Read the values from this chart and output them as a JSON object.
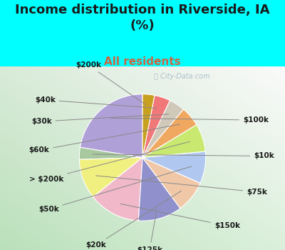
{
  "title": "Income distribution in Riverside, IA\n(%)",
  "subtitle": "All residents",
  "title_color": "#1a1a1a",
  "subtitle_color": "#cc6644",
  "bg_top": "#00ffff",
  "bg_chart_gradient": true,
  "watermark": "ⓘ City-Data.com",
  "labels": [
    "$100k",
    "$10k",
    "$75k",
    "$150k",
    "$125k",
    "$20k",
    "$50k",
    "> $200k",
    "$60k",
    "$30k",
    "$40k",
    "$200k"
  ],
  "values": [
    22,
    3,
    10,
    13,
    11,
    8,
    8,
    7,
    5,
    4,
    4,
    3
  ],
  "colors": [
    "#b0a0d8",
    "#a8c8a0",
    "#f0f080",
    "#f0b8c8",
    "#9090cc",
    "#f0c8a8",
    "#b0c8f0",
    "#c8e870",
    "#f0a860",
    "#d0c8b8",
    "#f07878",
    "#c8a020"
  ],
  "startangle": 90,
  "label_fontsize": 7.5,
  "title_fontsize": 13,
  "subtitle_fontsize": 11,
  "figsize": [
    4.0,
    3.5
  ],
  "dpi": 100
}
